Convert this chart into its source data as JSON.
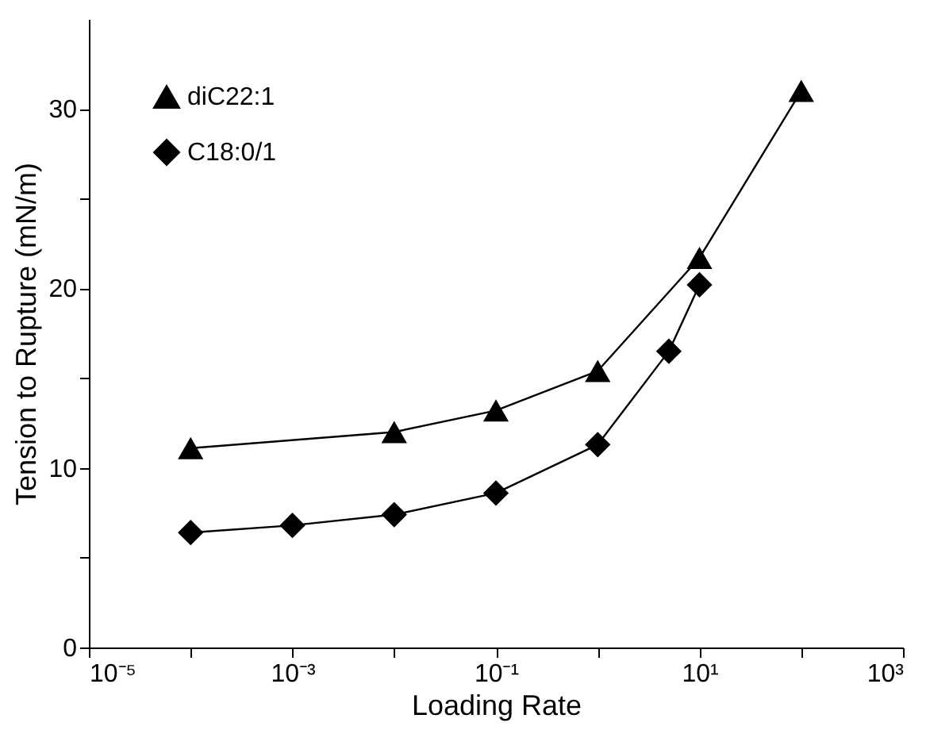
{
  "chart_data": {
    "type": "line",
    "xlabel": "Loading Rate",
    "ylabel": "Tension to Rupture (mN/m)",
    "log": "x",
    "grid": false,
    "legend": "top left",
    "line_style": "solid",
    "xlim": [
      1e-05,
      1000
    ],
    "ylim": [
      0,
      35
    ],
    "xticks": [
      {
        "value": 1e-05,
        "label": "10⁻⁵"
      },
      {
        "value": 0.0001,
        "label": null
      },
      {
        "value": 0.001,
        "label": "10⁻³"
      },
      {
        "value": 0.01,
        "label": null
      },
      {
        "value": 0.1,
        "label": "10⁻¹"
      },
      {
        "value": 1,
        "label": null
      },
      {
        "value": 10,
        "label": "10¹"
      },
      {
        "value": 100,
        "label": null
      },
      {
        "value": 1000,
        "label": "10³"
      }
    ],
    "yticks": [
      0,
      {
        "value": 5,
        "label": null
      },
      10,
      {
        "value": 15,
        "label": null
      },
      20,
      {
        "value": 25,
        "label": null
      },
      30
    ],
    "series": [
      {
        "name": "diC22:1",
        "color": "#000000",
        "marker": "triangle",
        "x": [
          0.0001,
          0.01,
          0.1,
          1,
          10,
          100
        ],
        "values": [
          11.1,
          12.0,
          13.2,
          15.4,
          21.7,
          31.0
        ]
      },
      {
        "name": "C18:0/1",
        "color": "#000000",
        "marker": "diamond",
        "x": [
          0.0001,
          0.001,
          0.01,
          0.1,
          1,
          5,
          10
        ],
        "values": [
          6.4,
          6.8,
          7.4,
          8.6,
          11.3,
          16.5,
          20.2
        ]
      }
    ]
  }
}
